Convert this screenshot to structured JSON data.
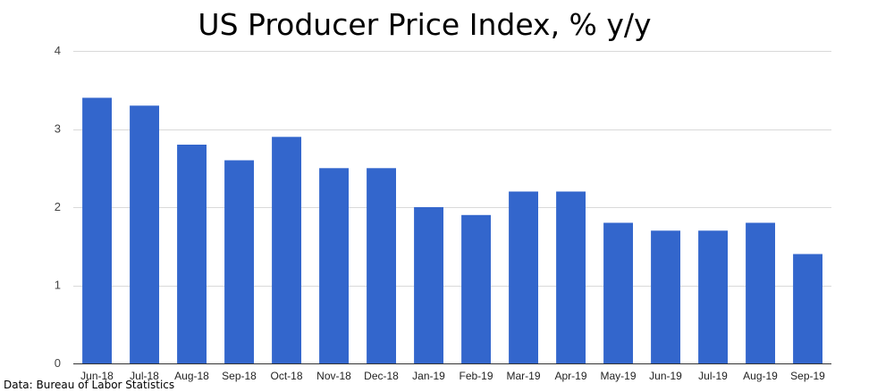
{
  "title": "US Producer Price Index, % y/y",
  "source_note": "Data: Bureau of Labor Statistics",
  "colors": {
    "bar": "#3366cc",
    "grid": "#d9d9d9",
    "axis": "#333333"
  },
  "chart_data": {
    "type": "bar",
    "title": "US Producer Price Index, % y/y",
    "xlabel": "",
    "ylabel": "",
    "categories": [
      "Jun-18",
      "Jul-18",
      "Aug-18",
      "Sep-18",
      "Oct-18",
      "Nov-18",
      "Dec-18",
      "Jan-19",
      "Feb-19",
      "Mar-19",
      "Apr-19",
      "May-19",
      "Jun-19",
      "Jul-19",
      "Aug-19",
      "Sep-19"
    ],
    "values": [
      3.4,
      3.3,
      2.8,
      2.6,
      2.9,
      2.5,
      2.5,
      2.0,
      1.9,
      2.2,
      2.2,
      1.8,
      1.7,
      1.7,
      1.8,
      1.4
    ],
    "ylim": [
      0,
      4
    ],
    "yticks": [
      0,
      1,
      2,
      3,
      4
    ],
    "grid": true,
    "legend": "none"
  }
}
